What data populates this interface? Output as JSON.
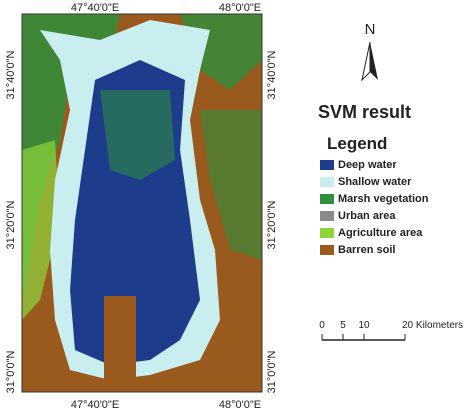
{
  "map": {
    "coords": {
      "top": [
        "47°40'0\"E",
        "48°0'0\"E"
      ],
      "bottom": [
        "47°40'0\"E",
        "48°0'0\"E"
      ],
      "left": [
        "31°40'0\"N",
        "31°20'0\"N",
        "31°0'0\"N"
      ],
      "right": [
        "31°40'0\"N",
        "31°20'0\"N",
        "31°0'0\"N"
      ]
    },
    "north": "N",
    "title": "SVM  result",
    "legend": {
      "title": "Legend",
      "items": [
        {
          "name": "Deep water",
          "color": "#1d3c8c"
        },
        {
          "name": "Shallow water",
          "color": "#c9eef0"
        },
        {
          "name": "Marsh vegetation",
          "color": "#2f8f3c"
        },
        {
          "name": "Urban area",
          "color": "#8a8a8a"
        },
        {
          "name": "Agriculture area",
          "color": "#8fd43c"
        },
        {
          "name": "Barren soil",
          "color": "#9a5a1e"
        }
      ]
    },
    "scale": [
      "0",
      "5",
      "10",
      "20 Kilometers"
    ]
  }
}
